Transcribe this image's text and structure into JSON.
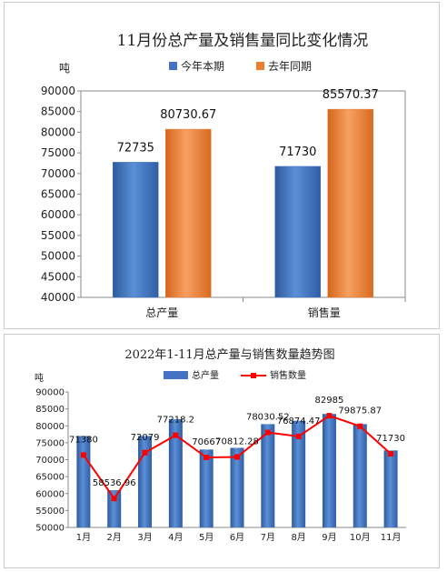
{
  "chart_data": [
    {
      "type": "bar",
      "title": "11月份总产量及销售量同比变化情况",
      "ylabel": "吨",
      "ylim": [
        40000,
        90000
      ],
      "yticks": [
        40000,
        45000,
        50000,
        55000,
        60000,
        65000,
        70000,
        75000,
        80000,
        85000,
        90000
      ],
      "categories": [
        "总产量",
        "销售量"
      ],
      "series": [
        {
          "name": "今年本期",
          "values": [
            72735,
            71730
          ],
          "labels": [
            "72735",
            "71730"
          ],
          "color": "#4472c4"
        },
        {
          "name": "去年同期",
          "values": [
            80730.67,
            85570.37
          ],
          "labels": [
            "80730.67",
            "85570.37"
          ],
          "color": "#ed7d31"
        }
      ],
      "legend": "top",
      "grid": false
    },
    {
      "type": "bar",
      "title": "2022年1-11月总产量与销售数量趋势图",
      "ylabel": "吨",
      "ylim": [
        50000,
        90000
      ],
      "yticks": [
        50000,
        55000,
        60000,
        65000,
        70000,
        75000,
        80000,
        85000,
        90000
      ],
      "categories": [
        "1月",
        "2月",
        "3月",
        "4月",
        "5月",
        "6月",
        "7月",
        "8月",
        "9月",
        "10月",
        "11月"
      ],
      "series": [
        {
          "name": "总产量",
          "type": "bar",
          "values": [
            77000,
            61000,
            77000,
            82000,
            73000,
            73500,
            80500,
            81500,
            83500,
            80500,
            72735
          ],
          "color": "#4472c4"
        },
        {
          "name": "销售数量",
          "type": "line",
          "values": [
            71380,
            58536.96,
            72079,
            77218.2,
            70667,
            70812.28,
            78030.52,
            76874.47,
            82985,
            79875.87,
            71730
          ],
          "labels": [
            "71380",
            "58536.96",
            "72079",
            "77218.2",
            "70667",
            "70812.28",
            "78030.52",
            "76874.47",
            "82985",
            "79875.87",
            "71730"
          ],
          "color": "#ff0000"
        }
      ],
      "legend": "top",
      "grid": false
    }
  ]
}
